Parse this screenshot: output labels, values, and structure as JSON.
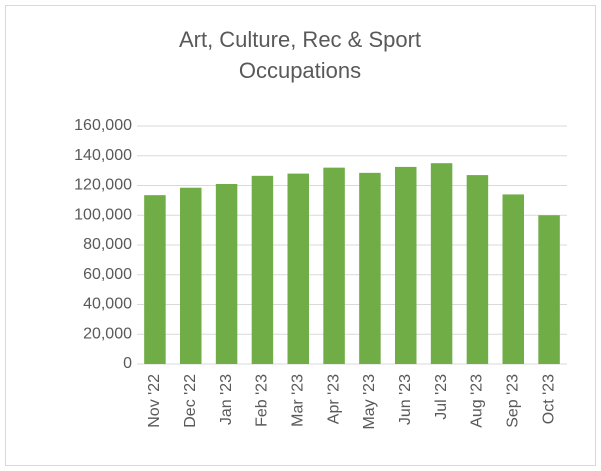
{
  "chart_data": {
    "type": "bar",
    "title": "Art, Culture, Rec & Sport Occupations",
    "categories": [
      "Nov '22",
      "Dec '22",
      "Jan '23",
      "Feb '23",
      "Mar '23",
      "Apr '23",
      "May '23",
      "Jun '23",
      "Jul '23",
      "Aug '23",
      "Sep '23",
      "Oct '23"
    ],
    "values": [
      113500,
      118500,
      121000,
      126500,
      128000,
      132000,
      128500,
      132500,
      135000,
      127000,
      114000,
      100000
    ],
    "color": "#70ad47",
    "ylim": [
      0,
      160000
    ],
    "yticks": [
      0,
      {
        "value": 20000,
        "label": "20,000"
      },
      {
        "value": 40000,
        "label": "40,000"
      },
      {
        "value": 60000,
        "label": "60,000"
      },
      {
        "value": 80000,
        "label": "80,000"
      },
      {
        "value": 100000,
        "label": "100,000"
      },
      {
        "value": 120000,
        "label": "120,000"
      },
      {
        "value": 140000,
        "label": "140,000"
      },
      {
        "value": 160000,
        "label": "160,000"
      }
    ],
    "grid": true
  }
}
